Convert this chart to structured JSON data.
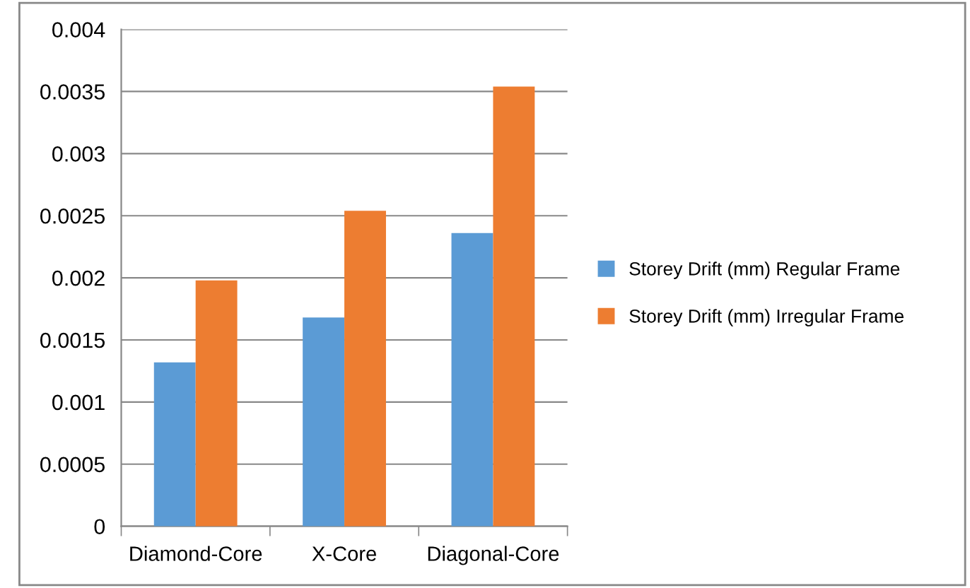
{
  "chart_data": {
    "type": "bar",
    "categories": [
      "Diamond-Core",
      "X-Core",
      "Diagonal-Core"
    ],
    "series": [
      {
        "name": "Storey Drift (mm) Regular Frame",
        "color": "#5b9bd5",
        "values": [
          0.00132,
          0.00168,
          0.00236
        ]
      },
      {
        "name": "Storey Drift (mm) Irregular Frame",
        "color": "#ed7d31",
        "values": [
          0.00198,
          0.00254,
          0.00354
        ]
      }
    ],
    "ylim": [
      0,
      0.004
    ],
    "yticks": [
      0,
      0.0005,
      0.001,
      0.0015,
      0.002,
      0.0025,
      0.003,
      0.0035,
      0.004
    ],
    "grid": "y",
    "legend": "right"
  }
}
